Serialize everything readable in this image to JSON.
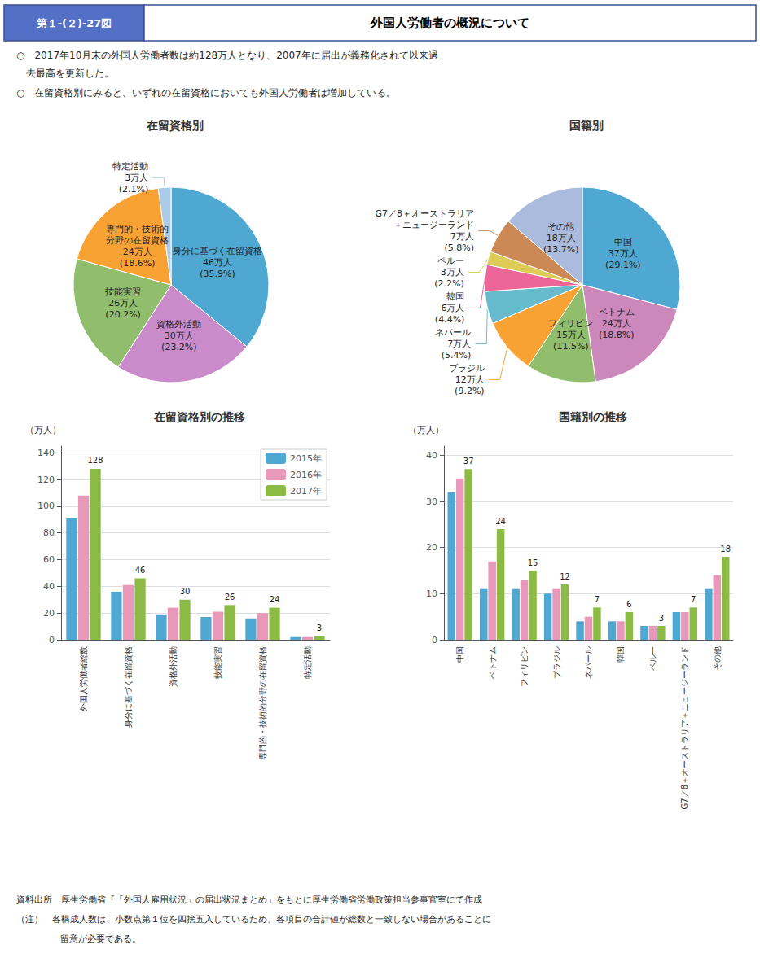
{
  "title": "外国人労働者の概況について",
  "figure_label": "第１-(２)-27図",
  "annotations": [
    "○　2017年10月末の外国人労働者数は約128万人となり、2007年に届出が義務化されて以来過",
    "　去最高を更新した。",
    "○　在留資格別にみると、いずれの在留資格においても外国人労働者は増加している。"
  ],
  "notes": [
    "資料出所　厚生労働省『「外国人雇用状況」の届出状況まとめ」をもとに厚生労働省労働政策担当参事官室にて作成",
    "（注）　各構成人数は、小数点第１位を四捨五入しているため、各項目の合計値が総数と一致しない場合があることに",
    "留意が必要である。"
  ],
  "chart_data": [
    {
      "type": "pie",
      "title": "在留資格別",
      "categories": [
        "身分に基づく在留資格",
        "資格外活動",
        "技能実習",
        "専門的・技術的\n分野の在留資格",
        "特定活動"
      ],
      "values": [
        35.9,
        23.2,
        20.2,
        18.6,
        2.1
      ],
      "value_labels": [
        "(35.9%)",
        "(23.2%)",
        "(20.2%)",
        "(18.6%)",
        "(2.1%)"
      ],
      "count_labels": [
        "46万人",
        "30万人",
        "26万人",
        "24万人",
        "3万人"
      ],
      "colors": [
        "#4EA8D2",
        "#C98BC9",
        "#90BE6D",
        "#F9A234",
        "#AACCE8"
      ],
      "data_labels": true
    },
    {
      "type": "pie",
      "title": "国籍別",
      "categories": [
        "中国",
        "ベトナム",
        "フィリピン",
        "ブラジル",
        "ネパール",
        "韓国",
        "ペルー",
        "G7／8＋オーストラリア\n＋ニュージーランド",
        "その他"
      ],
      "values": [
        29.1,
        18.8,
        11.5,
        9.2,
        5.4,
        4.4,
        2.2,
        5.8,
        13.7
      ],
      "value_labels": [
        "(29.1%)",
        "(18.8%)",
        "(11.5%)",
        "(9.2%)",
        "(5.4%)",
        "(4.4%)",
        "(2.2%)",
        "(5.8%)",
        "(13.7%)"
      ],
      "count_labels": [
        "37万人",
        "24万人",
        "15万人",
        "12万人",
        "7万人",
        "6万人",
        "3万人",
        "7万人",
        "18万人"
      ],
      "colors": [
        "#4EA8D2",
        "#CC88BB",
        "#90BE6D",
        "#F9A234",
        "#66BBCC",
        "#EE6699",
        "#DDCC55",
        "#CC8855",
        "#AABBDD"
      ],
      "data_labels": true
    },
    {
      "type": "bar",
      "title": "在留資格別の推移",
      "ylabel": "（万人）",
      "categories": [
        "外国人労働者総数",
        "身分に基づく在留資格",
        "資格外活動",
        "技能実習",
        "専門的・技術的分野の在留資格",
        "特定活動"
      ],
      "series": [
        {
          "name": "2015年",
          "color": "#4EA8D2",
          "values": [
            91,
            36,
            19,
            17,
            16,
            2
          ]
        },
        {
          "name": "2016年",
          "color": "#E898B8",
          "values": [
            108,
            41,
            24,
            21,
            20,
            2
          ]
        },
        {
          "name": "2017年",
          "color": "#8BBB44",
          "values": [
            128,
            46,
            30,
            26,
            24,
            3
          ],
          "data_labels": true
        }
      ],
      "ylim": [
        0,
        145
      ],
      "yticks": [
        0,
        20,
        40,
        60,
        80,
        100,
        120,
        140
      ],
      "grid": true,
      "legend": "upper right"
    },
    {
      "type": "bar",
      "title": "国籍別の推移",
      "ylabel": "（万人）",
      "categories": [
        "中国",
        "ベトナム",
        "フィリピン",
        "ブラジル",
        "ネパール",
        "韓国",
        "ペルー",
        "G7／8＋オーストラリア＋ニュージーランド",
        "その他"
      ],
      "series": [
        {
          "color": "#4EA8D2",
          "values": [
            32,
            11,
            11,
            10,
            4,
            4,
            3,
            6,
            11
          ]
        },
        {
          "color": "#E898B8",
          "values": [
            35,
            17,
            13,
            11,
            5,
            4,
            3,
            6,
            14
          ]
        },
        {
          "color": "#8BBB44",
          "values": [
            37,
            24,
            15,
            12,
            7,
            6,
            3,
            7,
            18
          ],
          "data_labels": true
        }
      ],
      "ylim": [
        0,
        42
      ],
      "yticks": [
        0,
        10,
        20,
        30,
        40
      ],
      "grid": true
    }
  ]
}
